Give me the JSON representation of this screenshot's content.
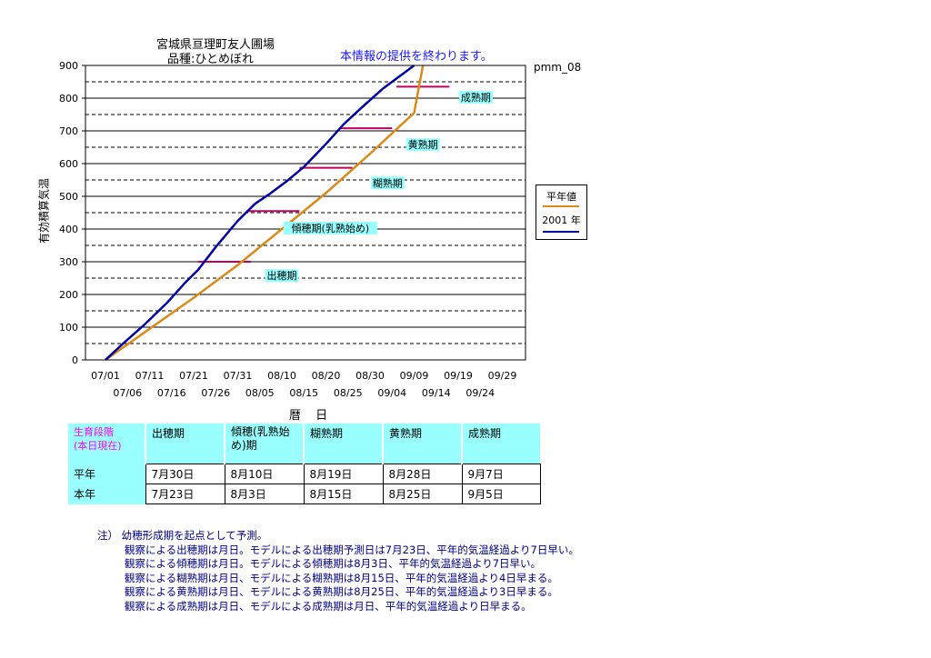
{
  "header": {
    "title_line1": "宮城県亘理町友人圃場",
    "title_line2": "品種:ひとめぼれ",
    "notice": "本情報の提供を終わります。",
    "code": "pmm_08"
  },
  "chart_data": {
    "type": "line",
    "ylabel": "有効積算気温",
    "xlabel": "暦 日",
    "ylim": [
      0,
      900
    ],
    "yticks": [
      0,
      100,
      200,
      300,
      400,
      500,
      600,
      700,
      800,
      900
    ],
    "xticks_top": [
      "07/01",
      "07/11",
      "07/21",
      "07/31",
      "08/10",
      "08/20",
      "08/30",
      "09/09",
      "09/19",
      "09/29"
    ],
    "xticks_bottom": [
      "07/06",
      "07/16",
      "07/26",
      "08/05",
      "08/15",
      "08/25",
      "09/04",
      "09/14",
      "09/24"
    ],
    "grid": "solid every 100, dashed every 50",
    "series": [
      {
        "name": "平年値",
        "color": "#d98a18",
        "day": [
          0,
          10,
          20,
          30,
          40,
          50,
          60,
          70,
          72
        ],
        "values": [
          0,
          95,
          190,
          290,
          400,
          510,
          630,
          755,
          900
        ]
      },
      {
        "name": "2001 年",
        "color": "#0000a0",
        "day": [
          0,
          4,
          9,
          14,
          16,
          18,
          21,
          25,
          30,
          34,
          37,
          41,
          45,
          50,
          54,
          58,
          63,
          68,
          70
        ],
        "values": [
          0,
          50,
          110,
          175,
          205,
          235,
          275,
          345,
          425,
          478,
          505,
          545,
          590,
          660,
          720,
          770,
          830,
          880,
          900
        ]
      }
    ],
    "stage_thresholds": [
      {
        "label": "出穂期",
        "value": 300,
        "day_start": 21,
        "day_end": 33
      },
      {
        "label": "傾穂期(乳熟始め)",
        "value": 455,
        "day_start": 32,
        "day_end": 44
      },
      {
        "label": "糊熟期",
        "value": 587,
        "day_start": 44,
        "day_end": 56
      },
      {
        "label": "黄熟期",
        "value": 708,
        "day_start": 53,
        "day_end": 65
      },
      {
        "label": "成熟期",
        "value": 835,
        "day_start": 66,
        "day_end": 78
      }
    ],
    "stage_label_pos": [
      {
        "day": 40,
        "value": 255
      },
      {
        "day": 51,
        "value": 400
      },
      {
        "day": 64,
        "value": 538
      },
      {
        "day": 72,
        "value": 655
      },
      {
        "day": 84,
        "value": 800
      }
    ],
    "threshold_color": "#c00060"
  },
  "legend": {
    "items": [
      {
        "label": "平年値",
        "color": "#d98a18"
      },
      {
        "label": "2001 年",
        "color": "#0000a0"
      }
    ]
  },
  "table": {
    "header_first": [
      "生育段階",
      "(本日現在)"
    ],
    "stages": [
      "出穂期",
      "傾穂(乳熟始め)期",
      "糊熟期",
      "黄熟期",
      "成熟期"
    ],
    "rows": [
      {
        "label": "平年",
        "values": [
          "7月30日",
          "8月10日",
          "8月19日",
          "8月28日",
          "9月7日"
        ]
      },
      {
        "label": "本年",
        "values": [
          "7月23日",
          "8月3日",
          "8月15日",
          "8月25日",
          "9月5日"
        ]
      }
    ]
  },
  "notes": [
    "注） 幼穂形成期を起点として予測。",
    "観察による出穂期は月日。モデルによる出穂期予測日は7月23日、平年的気温経過より7日早い。",
    "観察による傾穂期は月日。モデルによる傾穂期は8月3日、平年的気温経過より7日早い。",
    "観察による糊熟期は月日、モデルによる糊熟期は8月15日、平年的気温経過より4日早まる。",
    "観察による黄熟期は月日、モデルによる黄熟期は8月25日、平年的気温経過より3日早まる。",
    "観察による成熟期は月日、モデルによる成熟期は月日、平年的気温経過より日早まる。"
  ]
}
